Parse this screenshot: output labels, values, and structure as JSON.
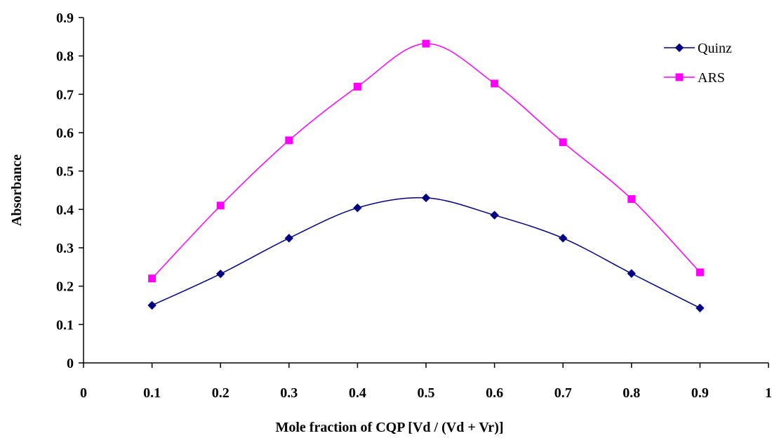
{
  "chart_data": {
    "type": "line",
    "title": "",
    "xlabel": "Mole fraction of CQP [Vd / (Vd + Vr)]",
    "ylabel": "Absorbance",
    "xlim": [
      0,
      1
    ],
    "ylim": [
      0,
      0.9
    ],
    "x_ticks": [
      "0",
      "0.1",
      "0.2",
      "0.3",
      "0.4",
      "0.5",
      "0.6",
      "0.7",
      "0.8",
      "0.9",
      "1"
    ],
    "y_ticks": [
      "0",
      "0.1",
      "0.2",
      "0.3",
      "0.4",
      "0.5",
      "0.6",
      "0.7",
      "0.8",
      "0.9"
    ],
    "grid": false,
    "smooth": true,
    "legend_position": "top-right",
    "x": [
      0.1,
      0.2,
      0.3,
      0.4,
      0.5,
      0.6,
      0.7,
      0.8,
      0.9
    ],
    "series": [
      {
        "name": "Quinz",
        "color": "#000080",
        "marker": "diamond",
        "values": [
          0.15,
          0.232,
          0.325,
          0.404,
          0.43,
          0.385,
          0.325,
          0.233,
          0.143
        ]
      },
      {
        "name": "ARS",
        "color": "#FF00FF",
        "marker": "square",
        "values": [
          0.22,
          0.41,
          0.58,
          0.72,
          0.832,
          0.728,
          0.575,
          0.427,
          0.236
        ]
      }
    ]
  }
}
